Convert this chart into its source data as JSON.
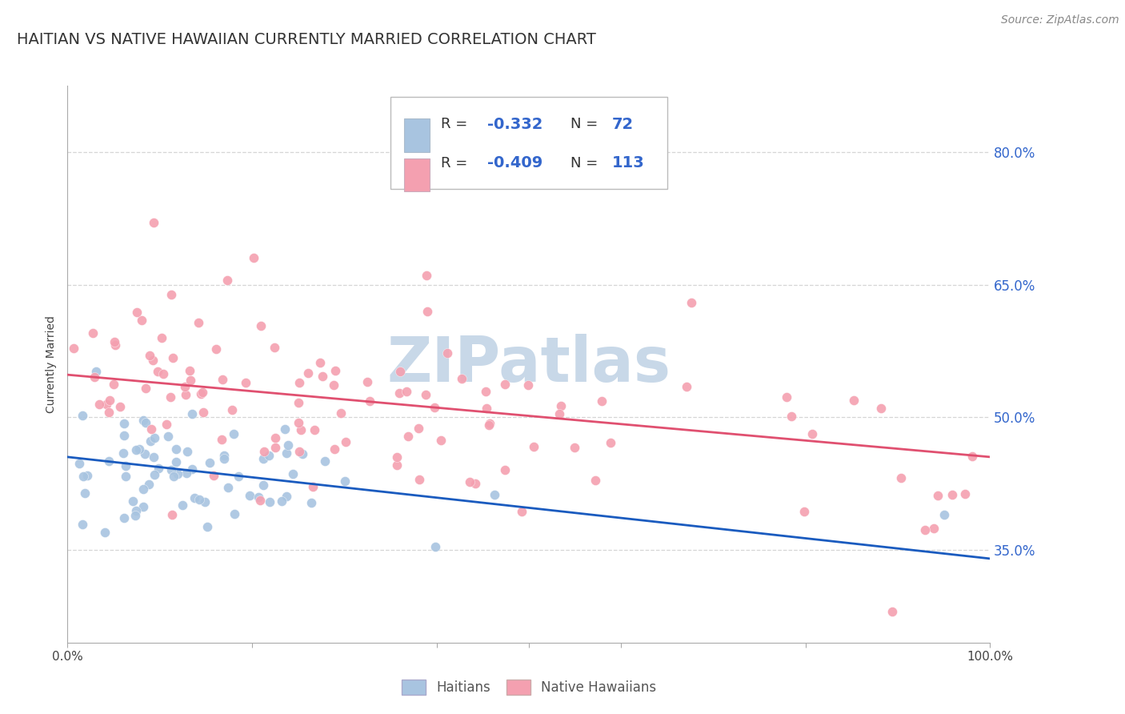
{
  "title": "HAITIAN VS NATIVE HAWAIIAN CURRENTLY MARRIED CORRELATION CHART",
  "source": "Source: ZipAtlas.com",
  "ylabel": "Currently Married",
  "ytick_labels": [
    "35.0%",
    "50.0%",
    "65.0%",
    "80.0%"
  ],
  "ytick_values": [
    0.35,
    0.5,
    0.65,
    0.8
  ],
  "xlim": [
    0.0,
    1.0
  ],
  "ylim": [
    0.245,
    0.875
  ],
  "legend_r1": "-0.332",
  "legend_n1": "72",
  "legend_r2": "-0.409",
  "legend_n2": "113",
  "color_haitian": "#a8c4e0",
  "color_hawaiian": "#f4a0b0",
  "color_haitian_line": "#1a5bbf",
  "color_hawaiian_line": "#e05070",
  "color_blue_text": "#3366cc",
  "background_color": "#ffffff",
  "grid_color": "#cccccc",
  "watermark": "ZIPatlas",
  "watermark_color": "#c8d8e8",
  "title_fontsize": 14,
  "axis_label_fontsize": 10,
  "tick_fontsize": 11,
  "legend_fontsize": 14,
  "source_fontsize": 10,
  "haitian_line_x0": 0.0,
  "haitian_line_x1": 1.0,
  "haitian_line_y0": 0.455,
  "haitian_line_y1": 0.34,
  "hawaiian_line_x0": 0.0,
  "hawaiian_line_x1": 1.0,
  "hawaiian_line_y0": 0.548,
  "hawaiian_line_y1": 0.455
}
